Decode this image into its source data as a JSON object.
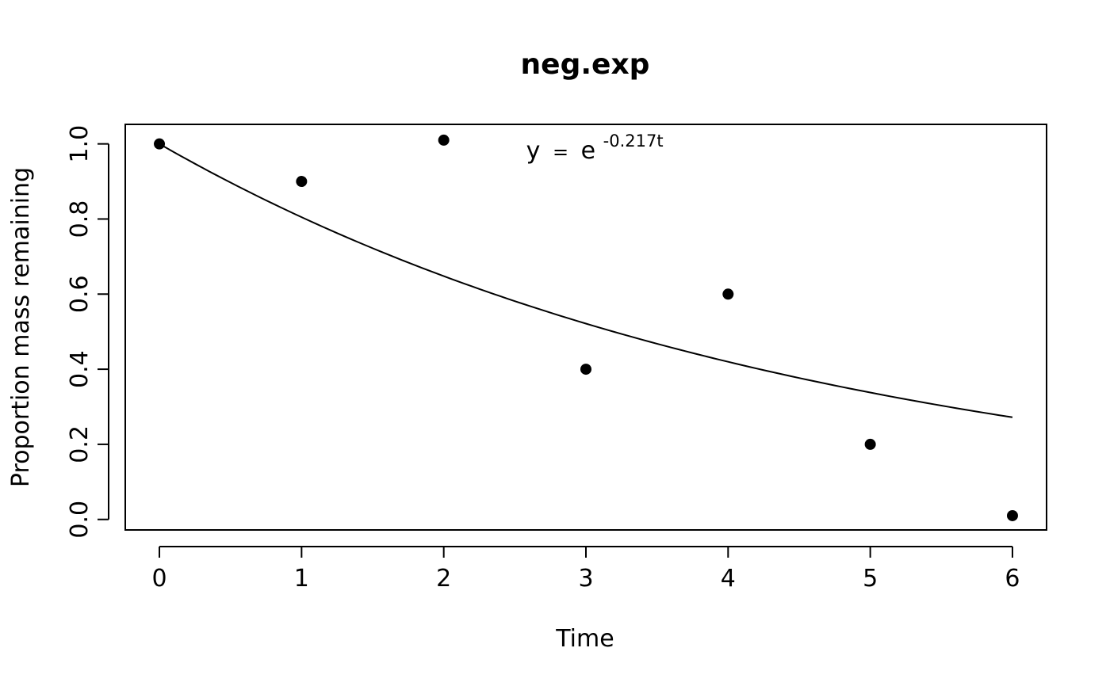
{
  "chart_data": {
    "type": "scatter",
    "title": "neg.exp",
    "xlabel": "Time",
    "ylabel": "Proportion mass remaining",
    "xlim": [
      -0.24,
      6.24
    ],
    "ylim": [
      -0.028,
      1.052
    ],
    "x_ticks": [
      0,
      1,
      2,
      3,
      4,
      5,
      6
    ],
    "x_tick_labels": [
      "0",
      "1",
      "2",
      "3",
      "4",
      "5",
      "6"
    ],
    "y_ticks": [
      0.0,
      0.2,
      0.4,
      0.6,
      0.8,
      1.0
    ],
    "y_tick_labels": [
      "0.0",
      "0.2",
      "0.4",
      "0.6",
      "0.8",
      "1.0"
    ],
    "grid": false,
    "legend": "none",
    "colors": {
      "points": "#000000",
      "line": "#000000"
    },
    "series": [
      {
        "type": "scatter",
        "x": [
          0,
          1,
          2,
          3,
          4,
          5,
          6
        ],
        "y": [
          1.0,
          0.9,
          1.01,
          0.4,
          0.6,
          0.2,
          0.01
        ]
      },
      {
        "type": "line",
        "function": "exp",
        "rate": -0.217,
        "x_range": [
          0,
          6
        ]
      }
    ],
    "annotation": {
      "lhs": "y",
      "equals": "=",
      "base": "e",
      "exponent": "-0.217t",
      "x": 2.58,
      "y": 0.985
    }
  }
}
